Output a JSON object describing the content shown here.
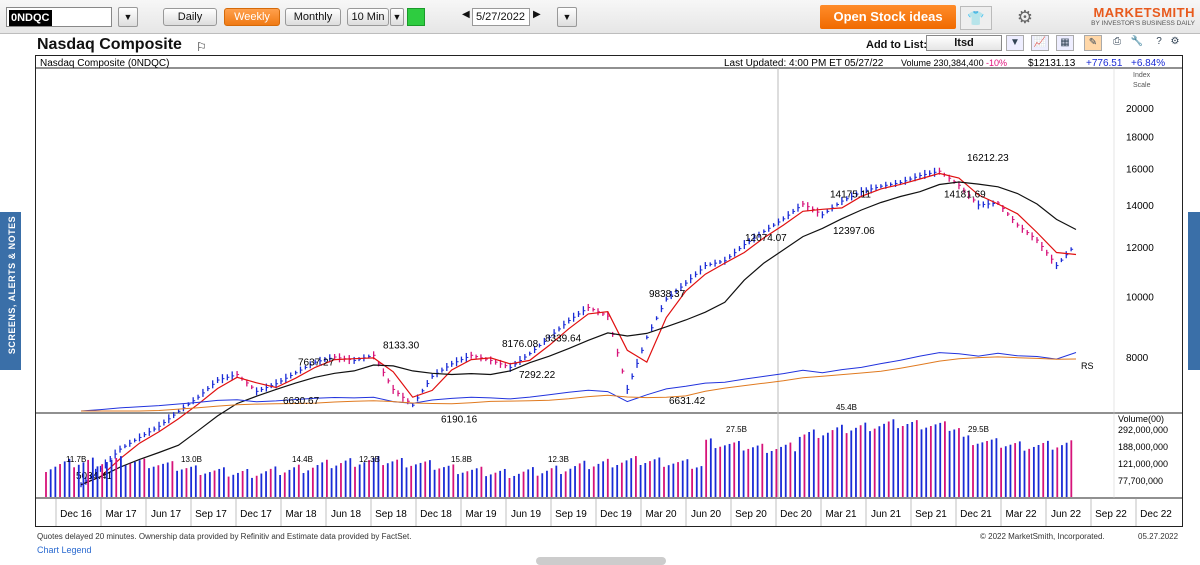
{
  "toolbar": {
    "symbol": "0NDQC",
    "daily": "Daily",
    "weekly": "Weekly",
    "monthly": "Monthly",
    "interval": "10 Min",
    "date": "5/27/2022",
    "open_ideas": "Open Stock ideas",
    "logo_main": "MARKETSMITH",
    "logo_sub": "BY INVESTOR'S BUSINESS DAILY"
  },
  "sidebar": {
    "label": "SCREENS, ALERTS & NOTES"
  },
  "header": {
    "title": "Nasdaq Composite",
    "add_to_list": "Add to List:",
    "list_value": "ltsd",
    "subtitle": "Nasdaq Composite   (0NDQC)",
    "last_updated": "Last Updated:  4:00 PM ET 05/27/22",
    "volume": "Volume 230,384,400",
    "vol_pct": "-10%",
    "price": "$12131.13",
    "change": "+776.51",
    "change_pct": "+6.84%",
    "index_scale": "Index Scale"
  },
  "colors": {
    "up": "#1a2bd6",
    "down": "#d6137a",
    "ma10": "#e01010",
    "ma40": "#111111",
    "rs": "#2233dd",
    "rsma": "#e07a20"
  },
  "chart_data": {
    "type": "ohlc",
    "y_ticks": [
      8000,
      10000,
      12000,
      14000,
      16000,
      18000,
      20000
    ],
    "x_ticks": [
      "Dec 16",
      "Mar 17",
      "Jun 17",
      "Sep 17",
      "Dec 17",
      "Mar 18",
      "Jun 18",
      "Sep 18",
      "Dec 18",
      "Mar 19",
      "Jun 19",
      "Sep 19",
      "Dec 19",
      "Mar 20",
      "Jun 20",
      "Sep 20",
      "Dec 20",
      "Mar 21",
      "Jun 21",
      "Sep 21",
      "Dec 21",
      "Mar 22",
      "Jun 22",
      "Sep 22",
      "Dec 22"
    ],
    "annotations": [
      {
        "label": "5034.41",
        "value": 5034.41
      },
      {
        "label": "7637.27",
        "value": 7637.27
      },
      {
        "label": "6630.67",
        "value": 6630.67
      },
      {
        "label": "8133.30",
        "value": 8133.3
      },
      {
        "label": "6190.16",
        "value": 6190.16
      },
      {
        "label": "8176.08",
        "value": 8176.08
      },
      {
        "label": "8339.64",
        "value": 8339.64
      },
      {
        "label": "7292.22",
        "value": 7292.22
      },
      {
        "label": "9838.37",
        "value": 9838.37
      },
      {
        "label": "6631.42",
        "value": 6631.42
      },
      {
        "label": "12074.07",
        "value": 12074.07
      },
      {
        "label": "14175.11",
        "value": 14175.11
      },
      {
        "label": "12397.06",
        "value": 12397.06
      },
      {
        "label": "16212.23",
        "value": 16212.23
      },
      {
        "label": "14181.69",
        "value": 14181.69
      }
    ],
    "rs_label": "RS",
    "volume_title": "Volume(00)",
    "volume_ticks": [
      "292,000,000",
      "188,000,000",
      "121,000,000",
      "77,700,000"
    ],
    "volume_labels": [
      "11.7B",
      "13.0B",
      "14.4B",
      "12.3B",
      "15.8B",
      "12.3B",
      "27.5B",
      "45.4B",
      "29.5B"
    ],
    "price_series": [
      5000,
      5300,
      5700,
      5950,
      6200,
      6550,
      6900,
      7350,
      7500,
      7050,
      7250,
      7550,
      7850,
      8000,
      7900,
      8050,
      7100,
      6700,
      7450,
      7800,
      8050,
      7900,
      7700,
      8100,
      8600,
      9150,
      9600,
      9300,
      7100,
      8600,
      9900,
      10500,
      11200,
      11400,
      12100,
      12700,
      13300,
      14050,
      13500,
      14200,
      14700,
      15000,
      15200,
      15600,
      15850,
      15050,
      14000,
      14100,
      13000,
      12300,
      11200,
      12131
    ]
  },
  "footer": {
    "quotes": "Quotes delayed 20 minutes. Ownership data provided by Refinitiv and Estimate data provided by FactSet.",
    "legend": "Chart Legend",
    "copyright": "© 2022 MarketSmith, Incorporated.",
    "date": "05.27.2022"
  }
}
